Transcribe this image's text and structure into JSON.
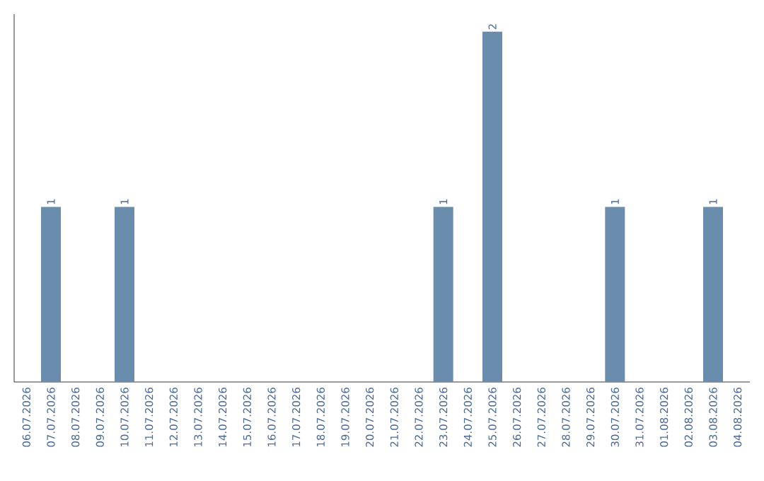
{
  "chart_data": {
    "type": "bar",
    "categories": [
      "06.07.2026",
      "07.07.2026",
      "08.07.2026",
      "09.07.2026",
      "10.07.2026",
      "11.07.2026",
      "12.07.2026",
      "13.07.2026",
      "14.07.2026",
      "15.07.2026",
      "16.07.2026",
      "17.07.2026",
      "18.07.2026",
      "19.07.2026",
      "20.07.2026",
      "21.07.2026",
      "22.07.2026",
      "23.07.2026",
      "24.07.2026",
      "25.07.2026",
      "26.07.2026",
      "27.07.2026",
      "28.07.2026",
      "29.07.2026",
      "30.07.2026",
      "31.07.2026",
      "01.08.2026",
      "02.08.2026",
      "03.08.2026",
      "04.08.2026"
    ],
    "values": [
      0,
      1,
      0,
      0,
      1,
      0,
      0,
      0,
      0,
      0,
      0,
      0,
      0,
      0,
      0,
      0,
      0,
      1,
      0,
      2,
      0,
      0,
      0,
      0,
      1,
      0,
      0,
      0,
      1,
      0
    ],
    "value_labels": [
      null,
      "1",
      null,
      null,
      "1",
      null,
      null,
      null,
      null,
      null,
      null,
      null,
      null,
      null,
      null,
      null,
      null,
      "1",
      null,
      "2",
      null,
      null,
      null,
      null,
      "1",
      null,
      null,
      null,
      "1",
      null
    ],
    "color": "#6a8cad",
    "tick_labels": "x",
    "grid": false
  }
}
